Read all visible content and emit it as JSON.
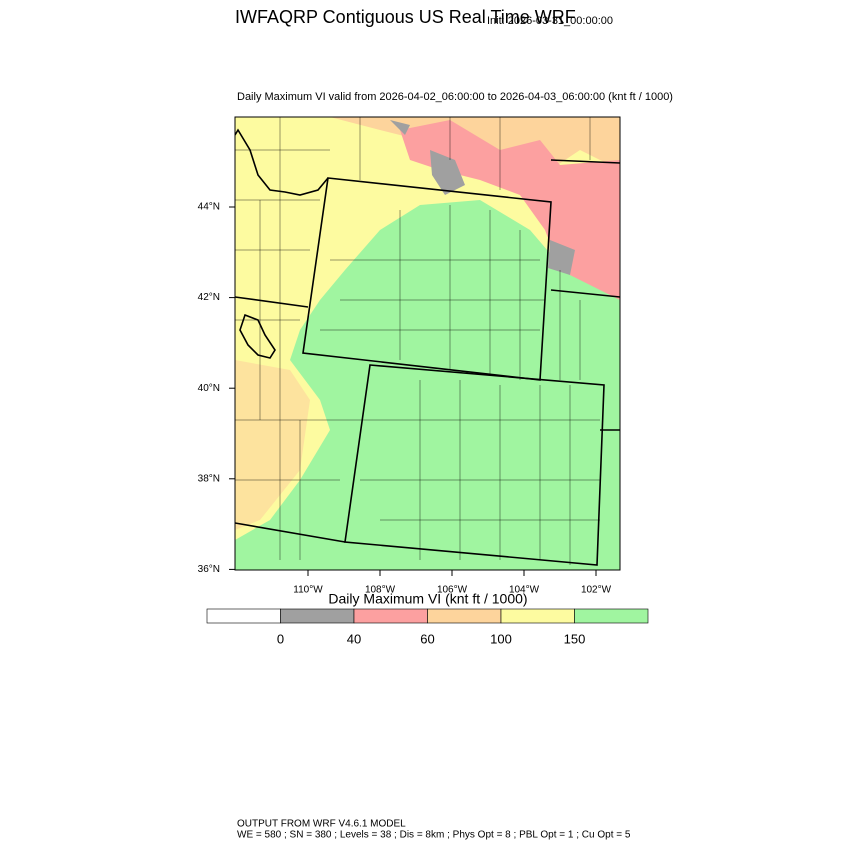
{
  "header": {
    "title": "IWFAQRP Contiguous US Real Time WRF",
    "init": "Init: 2026-03-31_00:00:00",
    "subtitle": "Daily Maximum VI valid from 2026-04-02_06:00:00 to 2026-04-03_06:00:00   (knt ft / 1000)"
  },
  "map": {
    "lat_labels": [
      "44°N",
      "42°N",
      "40°N",
      "38°N",
      "36°N"
    ],
    "lon_labels": [
      "110°W",
      "108°W",
      "106°W",
      "104°W",
      "102°W"
    ]
  },
  "colorbar": {
    "title": "Daily Maximum VI  (knt ft / 1000)",
    "levels": [
      0,
      40,
      60,
      100,
      150
    ],
    "colors": [
      "#ffffff",
      "#a0a0a0",
      "#fca0a0",
      "#fdd49c",
      "#fdfba0",
      "#a0f5a0"
    ]
  },
  "footer": [
    "OUTPUT FROM WRF V4.6.1 MODEL",
    "WE = 580 ; SN = 380 ; Levels = 38 ; Dis = 8km ; Phys Opt = 8 ; PBL Opt = 1 ; Cu Opt = 5"
  ]
}
